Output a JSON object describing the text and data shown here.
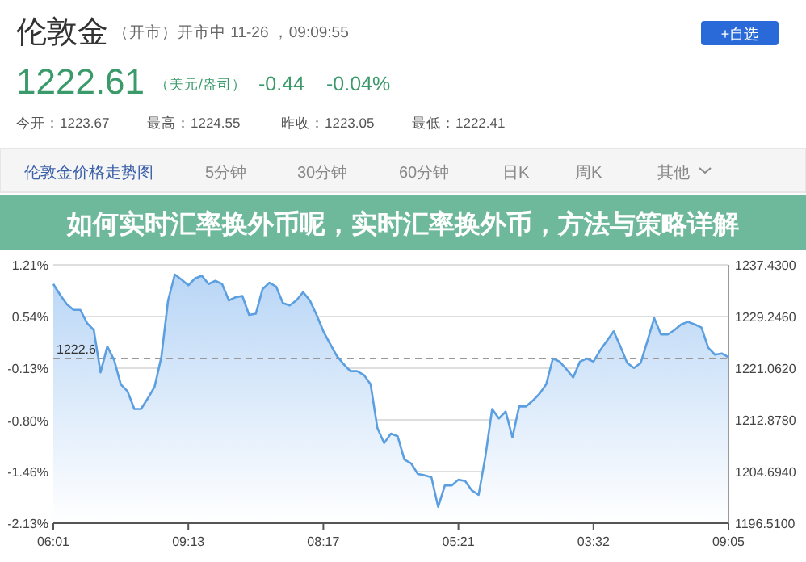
{
  "chart_data": {
    "type": "area",
    "title": "如何实时汇率换外币呢，实时汇率换外币，方法与策略详解",
    "categories": [
      "06:01",
      null,
      null,
      null,
      null,
      null,
      null,
      null,
      null,
      null,
      null,
      null,
      null,
      null,
      null,
      null,
      null,
      null,
      null,
      null,
      "09:13",
      null,
      null,
      null,
      null,
      null,
      null,
      null,
      null,
      null,
      null,
      null,
      null,
      null,
      null,
      null,
      null,
      null,
      null,
      null,
      "08:17",
      null,
      null,
      null,
      null,
      null,
      null,
      null,
      null,
      null,
      null,
      null,
      null,
      null,
      null,
      null,
      null,
      null,
      null,
      null,
      "05:21",
      null,
      null,
      null,
      null,
      null,
      null,
      null,
      null,
      null,
      null,
      null,
      null,
      null,
      null,
      null,
      null,
      null,
      null,
      null,
      "03:32",
      null,
      null,
      null,
      null,
      null,
      null,
      null,
      null,
      null,
      null,
      null,
      null,
      null,
      null,
      null,
      null,
      null,
      null,
      null,
      "09:05"
    ],
    "series": [
      {
        "color": "#5c9fe0",
        "values": [
          1234.4,
          1232.7,
          1231.2,
          1230.3,
          1230.3,
          1228.2,
          1227.1,
          1220.4,
          1224.5,
          1222.4,
          1218.5,
          1217.4,
          1214.6,
          1214.6,
          1216.3,
          1218.1,
          1222.8,
          1231.8,
          1235.9,
          1235.1,
          1234.2,
          1235.3,
          1235.7,
          1234.4,
          1234.9,
          1234.4,
          1231.8,
          1232.3,
          1232.5,
          1229.5,
          1229.7,
          1233.6,
          1234.6,
          1234.0,
          1231.4,
          1231.0,
          1231.8,
          1233.1,
          1231.8,
          1229.5,
          1226.9,
          1224.9,
          1223.0,
          1221.7,
          1220.6,
          1220.6,
          1220.0,
          1218.5,
          1211.6,
          1209.2,
          1210.7,
          1210.3,
          1206.6,
          1206.0,
          1204.3,
          1204.1,
          1203.8,
          1199.1,
          1202.5,
          1202.5,
          1203.4,
          1203.2,
          1201.7,
          1201.0,
          1207.1,
          1214.6,
          1213.1,
          1214.2,
          1210.1,
          1215.0,
          1215.0,
          1215.9,
          1217.0,
          1218.5,
          1222.6,
          1222.1,
          1220.9,
          1219.6,
          1222.1,
          1222.6,
          1222.1,
          1223.9,
          1225.4,
          1226.9,
          1224.5,
          1221.9,
          1221.1,
          1221.9,
          1225.4,
          1229.0,
          1226.4,
          1226.4,
          1227.1,
          1228.0,
          1228.4,
          1228.0,
          1227.5,
          1224.3,
          1223.2,
          1223.4,
          1222.8
        ]
      }
    ],
    "ylim": [
      1196.51,
      1237.43
    ],
    "yticks": [
      {
        "value": 1196.51,
        "label": "1196.5100"
      },
      {
        "value": 1204.694,
        "label": "1204.6940"
      },
      {
        "value": 1212.878,
        "label": "1212.8780"
      },
      {
        "value": 1221.062,
        "label": "1221.0620"
      },
      {
        "value": 1229.246,
        "label": "1229.2460"
      },
      {
        "value": 1237.43,
        "label": "1237.4300"
      }
    ],
    "y2lim": [
      -2.13,
      1.21
    ],
    "y2ticks": [
      {
        "value": -2.13,
        "label": "-2.13%"
      },
      {
        "value": -1.46,
        "label": "-1.46%"
      },
      {
        "value": -0.8,
        "label": "-0.80%"
      },
      {
        "value": -0.13,
        "label": "-0.13%"
      },
      {
        "value": 0.54,
        "label": "0.54%"
      },
      {
        "value": 1.21,
        "label": "1.21%"
      }
    ],
    "ref_lines": [
      {
        "axis": "y",
        "value": 1222.6,
        "label": "1222.6",
        "line_style": "dashed"
      }
    ],
    "grid": "y",
    "annotations": [
      "伦敦金",
      "（开市）开市中 11-26 ，09:09:55",
      "+自选",
      "1222.61",
      "（美元/盎司）",
      "-0.44",
      "-0.04%",
      "今开：1223.67",
      "最高：1224.55",
      "昨收：1223.05",
      "最低：1222.41",
      "伦敦金价格走势图",
      "5分钟",
      "30分钟",
      "60分钟",
      "日K",
      "周K",
      "其他"
    ]
  }
}
